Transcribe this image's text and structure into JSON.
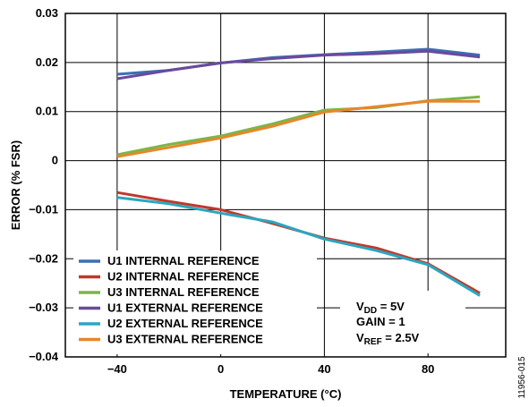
{
  "chart_data": {
    "type": "line",
    "title": "",
    "xlabel": "TEMPERATURE (°C)",
    "ylabel": "ERROR (% FSR)",
    "xlim": [
      -60,
      110
    ],
    "ylim": [
      -0.04,
      0.03
    ],
    "x_ticks": [
      -40,
      0,
      40,
      80
    ],
    "x_tick_labels": [
      "−40",
      "0",
      "40",
      "80"
    ],
    "y_ticks": [
      0.03,
      0.02,
      0.01,
      0,
      -0.01,
      -0.02,
      -0.03,
      -0.04
    ],
    "y_tick_labels": [
      "0.03",
      "0.02",
      "0.01",
      "0",
      "−0.01",
      "−0.02",
      "−0.03",
      "−0.04"
    ],
    "grid": true,
    "legend_position": "bottom-left",
    "x": [
      -40,
      -20,
      0,
      20,
      40,
      60,
      80,
      100
    ],
    "series": [
      {
        "name": "U1 INTERNAL REFERENCE",
        "color": "#3a6fb5",
        "values": [
          0.0176,
          0.0184,
          0.0199,
          0.021,
          0.0216,
          0.0221,
          0.0227,
          0.0215
        ]
      },
      {
        "name": "U2 INTERNAL REFERENCE",
        "color": "#c0392b",
        "values": [
          -0.0065,
          -0.0083,
          -0.01,
          -0.0128,
          -0.0158,
          -0.0178,
          -0.021,
          -0.027
        ]
      },
      {
        "name": "U3 INTERNAL REFERENCE",
        "color": "#7ab648",
        "values": [
          0.0012,
          0.0033,
          0.005,
          0.0075,
          0.0103,
          0.0108,
          0.0122,
          0.013
        ]
      },
      {
        "name": "U1 EXTERNAL REFERENCE",
        "color": "#6a4a9c",
        "values": [
          0.0167,
          0.0184,
          0.0199,
          0.0208,
          0.0215,
          0.0218,
          0.0223,
          0.0211
        ]
      },
      {
        "name": "U2 EXTERNAL REFERENCE",
        "color": "#2aa7c0",
        "values": [
          -0.0075,
          -0.0088,
          -0.0107,
          -0.0125,
          -0.016,
          -0.0183,
          -0.0212,
          -0.0275
        ]
      },
      {
        "name": "U3 EXTERNAL REFERENCE",
        "color": "#e8862a",
        "values": [
          0.0008,
          0.0027,
          0.0046,
          0.007,
          0.0099,
          0.011,
          0.0121,
          0.0121
        ]
      }
    ],
    "annotation": {
      "vdd_main": "V",
      "vdd_sub": "DD",
      "vdd_rest": " = 5V",
      "gain": "GAIN = 1",
      "vref_main": "V",
      "vref_sub": "REF",
      "vref_rest": " = 2.5V"
    },
    "figure_id": "11956-015"
  }
}
